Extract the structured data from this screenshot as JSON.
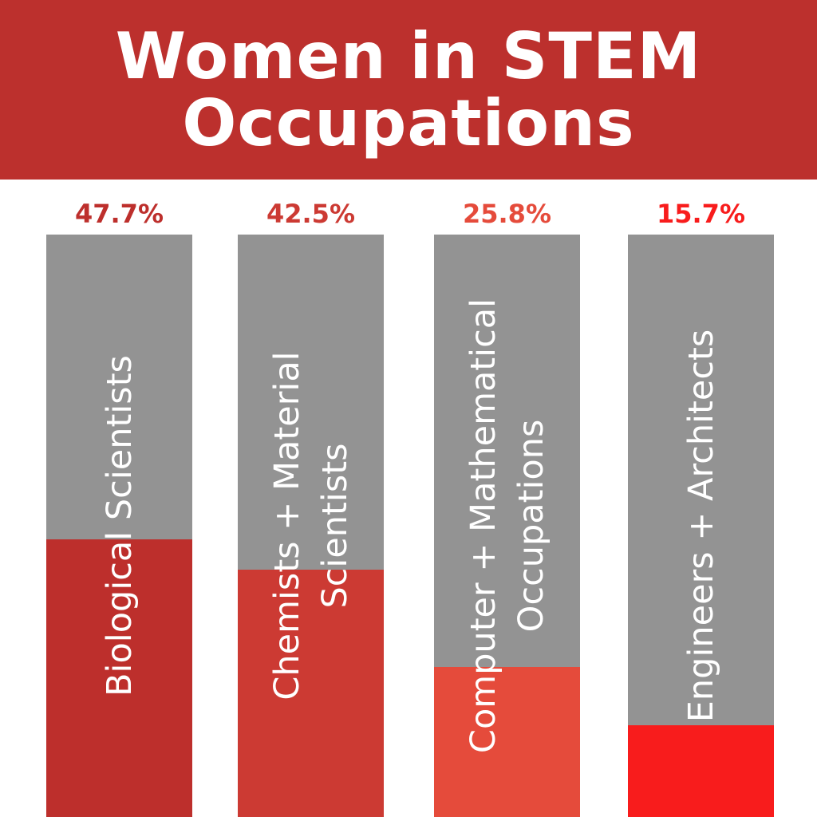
{
  "header": {
    "title_line1": "Women in STEM",
    "title_line2": "Occupations"
  },
  "colors": {
    "header_bg": "#bc302d",
    "track": "#939393"
  },
  "chart_data": {
    "type": "bar",
    "title": "Women in STEM Occupations",
    "ylim": [
      0,
      100
    ],
    "categories": [
      "Biological Scientists",
      "Chemists + Material Scientists",
      "Computer + Mathematical Occupations",
      "Engineers + Architects"
    ],
    "labels": [
      [
        "Biological Scientists"
      ],
      [
        "Chemists + Material",
        "Scientists"
      ],
      [
        "Computer + Mathematical",
        "Occupations"
      ],
      [
        "Engineers + Architects"
      ]
    ],
    "values": [
      47.7,
      42.5,
      25.8,
      15.7
    ],
    "value_labels": [
      "47.7%",
      "42.5%",
      "25.8%",
      "15.7%"
    ],
    "fill_colors": [
      "#bd2f2c",
      "#cc3a33",
      "#e54b3b",
      "#f81c1c"
    ],
    "value_label_colors": [
      "#bd2f2c",
      "#cc3a33",
      "#e54b3b",
      "#f81c1c"
    ]
  }
}
